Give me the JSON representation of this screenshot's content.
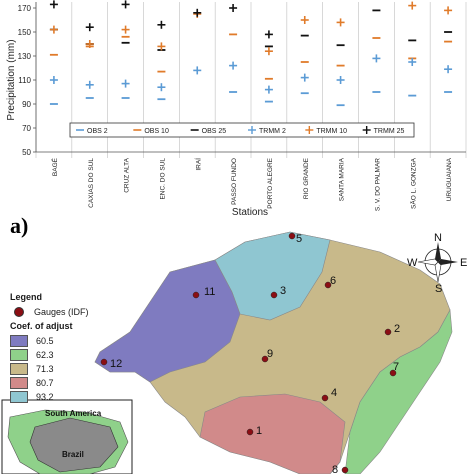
{
  "chart_data": {
    "type": "scatter",
    "ylabel": "Precipitation (mm)",
    "xlabel": "Stations",
    "ylim": [
      50,
      175
    ],
    "yticks": [
      50,
      70,
      90,
      110,
      130,
      150,
      170
    ],
    "categories": [
      "BAGÉ",
      "CAXIAS DO SUL",
      "CRUZ ALTA",
      "ENC. DO SUL",
      "IRAÍ",
      "PASSO FUNDO",
      "PORTO ALEGRE",
      "RIO GRANDE",
      "SANTA MARIA",
      "S. V. DO PALMAR",
      "SÃO L. GONZGA",
      "URUGUAIANA"
    ],
    "series": [
      {
        "name": "OBS 2",
        "marker": "dash",
        "color": "#5b9bd5",
        "values": [
          90,
          95,
          95,
          94,
          null,
          100,
          92,
          99,
          89,
          100,
          97,
          100
        ]
      },
      {
        "name": "OBS 10",
        "marker": "dash",
        "color": "#e07b2a",
        "values": [
          131,
          138,
          146,
          117,
          null,
          148,
          111,
          125,
          122,
          145,
          128,
          142
        ]
      },
      {
        "name": "OBS 25",
        "marker": "dash",
        "color": "#111111",
        "values": [
          152,
          140,
          141,
          135,
          null,
          null,
          138,
          147,
          139,
          168,
          143,
          150
        ]
      },
      {
        "name": "TRMM 2",
        "marker": "plus",
        "color": "#5b9bd5",
        "values": [
          110,
          106,
          107,
          104,
          118,
          122,
          102,
          112,
          110,
          128,
          125,
          119
        ]
      },
      {
        "name": "TRMM 10",
        "marker": "plus",
        "color": "#e07b2a",
        "values": [
          152,
          140,
          152,
          138,
          165,
          null,
          134,
          160,
          158,
          null,
          172,
          168
        ]
      },
      {
        "name": "TRMM 25",
        "marker": "plus",
        "color": "#111111",
        "values": [
          173,
          154,
          173,
          156,
          166,
          170,
          148,
          null,
          null,
          null,
          null,
          null
        ]
      }
    ]
  },
  "panel_label": "a)",
  "map": {
    "legend_title": "Legend",
    "gauges_label": "Gauges (IDF)",
    "coef_title": "Coef. of adjust",
    "classes": [
      {
        "label": "60.5",
        "color": "#7f7bc0"
      },
      {
        "label": "62.3",
        "color": "#8fd18a"
      },
      {
        "label": "71.3",
        "color": "#c8b98a"
      },
      {
        "label": "80.7",
        "color": "#d18a8a"
      },
      {
        "label": "93.2",
        "color": "#8fc6d1"
      }
    ],
    "gauges": [
      "1",
      "2",
      "3",
      "4",
      "5",
      "6",
      "7",
      "8",
      "9",
      "11",
      "12"
    ],
    "compass": "N",
    "compass_w": "W",
    "compass_e": "E",
    "compass_s": "S",
    "inset_label_1": "South America",
    "inset_label_2": "Brazil"
  }
}
